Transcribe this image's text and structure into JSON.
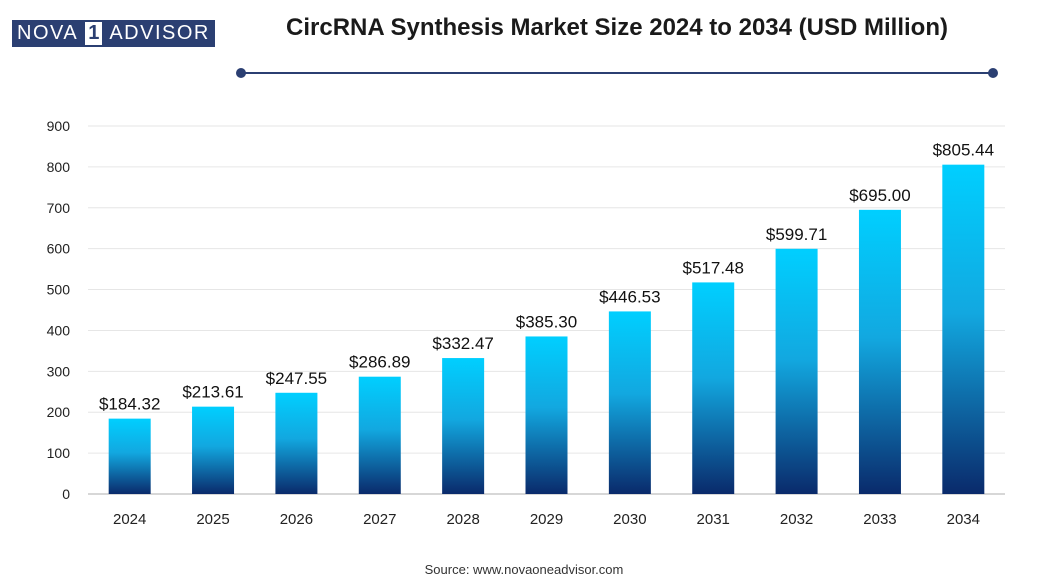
{
  "logo": {
    "left": "NOVA",
    "mid": "1",
    "right": "ADVISOR"
  },
  "header": {
    "title": "CircRNA Synthesis Market Size 2024 to 2034 (USD Million)"
  },
  "source": "Source: www.novaoneadvisor.com",
  "colors": {
    "bar_top": "#00cfff",
    "bar_bottom": "#0a2a6b",
    "brand": "#2b3f72",
    "grid": "#e6e6e6"
  },
  "chart_data": {
    "type": "bar",
    "title": "CircRNA Synthesis Market Size 2024 to 2034 (USD Million)",
    "xlabel": "",
    "ylabel": "",
    "categories": [
      "2024",
      "2025",
      "2026",
      "2027",
      "2028",
      "2029",
      "2030",
      "2031",
      "2032",
      "2033",
      "2034"
    ],
    "values": [
      184.32,
      213.61,
      247.55,
      286.89,
      332.47,
      385.3,
      446.53,
      517.48,
      599.71,
      695.0,
      805.44
    ],
    "data_labels": [
      "$184.32",
      "$213.61",
      "$247.55",
      "$286.89",
      "$332.47",
      "$385.30",
      "$446.53",
      "$517.48",
      "$599.71",
      "$695.00",
      "$805.44"
    ],
    "ylim": [
      0,
      900
    ],
    "yticks": [
      0,
      100,
      200,
      300,
      400,
      500,
      600,
      700,
      800,
      900
    ],
    "grid": true,
    "legend": "none"
  }
}
